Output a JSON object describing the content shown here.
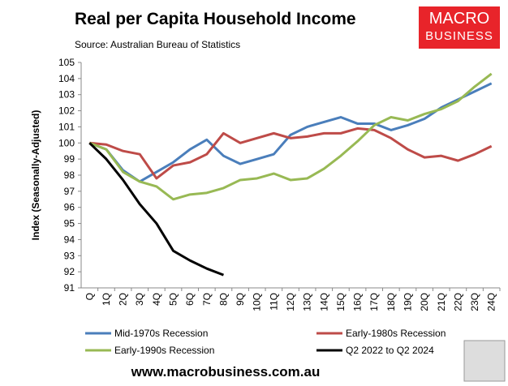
{
  "chart_data": {
    "type": "line",
    "title": "Real per Capita Household Income",
    "subtitle": "Source: Australian Bureau of Statistics",
    "logo": [
      "MACRO",
      "BUSINESS"
    ],
    "footer": "www.macrobusiness.com.au",
    "y_label": "Index (Seasonally-Adjusted)",
    "categories": [
      "Q",
      "1Q",
      "2Q",
      "3Q",
      "4Q",
      "5Q",
      "6Q",
      "7Q",
      "8Q",
      "9Q",
      "10Q",
      "11Q",
      "12Q",
      "13Q",
      "14Q",
      "15Q",
      "16Q",
      "17Q",
      "18Q",
      "19Q",
      "20Q",
      "21Q",
      "22Q",
      "23Q",
      "24Q"
    ],
    "series": [
      {
        "name": "Mid-1970s Recession",
        "color": "#4a7ebb",
        "values": [
          100,
          99.6,
          98.3,
          97.6,
          98.2,
          98.8,
          99.6,
          100.2,
          99.2,
          98.7,
          99.0,
          99.3,
          100.5,
          101.0,
          101.3,
          101.6,
          101.2,
          101.2,
          100.8,
          101.1,
          101.5,
          102.2,
          102.7,
          103.2,
          103.7
        ]
      },
      {
        "name": "Early-1980s Recession",
        "color": "#be4b48",
        "values": [
          100,
          99.9,
          99.5,
          99.3,
          97.8,
          98.6,
          98.8,
          99.3,
          100.6,
          100.0,
          100.3,
          100.6,
          100.3,
          100.4,
          100.6,
          100.6,
          100.9,
          100.8,
          100.3,
          99.6,
          99.1,
          99.2,
          98.9,
          99.3,
          99.8
        ]
      },
      {
        "name": "Early-1990s Recession",
        "color": "#98b954",
        "values": [
          100,
          99.6,
          98.2,
          97.6,
          97.3,
          96.5,
          96.8,
          96.9,
          97.2,
          97.7,
          97.8,
          98.1,
          97.7,
          97.8,
          98.4,
          99.2,
          100.1,
          101.1,
          101.6,
          101.4,
          101.8,
          102.1,
          102.6,
          103.5,
          104.3
        ]
      },
      {
        "name": "Q2 2022 to Q2 2024",
        "color": "#000000",
        "values": [
          100,
          99.0,
          97.7,
          96.2,
          95.0,
          93.3,
          92.7,
          92.2,
          91.8,
          null,
          null,
          null,
          null,
          null,
          null,
          null,
          null,
          null,
          null,
          null,
          null,
          null,
          null,
          null,
          null
        ]
      }
    ],
    "ylim": [
      91,
      105
    ],
    "yticks": [
      91,
      92,
      93,
      94,
      95,
      96,
      97,
      98,
      99,
      100,
      101,
      102,
      103,
      104,
      105
    ],
    "grid": false,
    "legend": "bottom"
  }
}
